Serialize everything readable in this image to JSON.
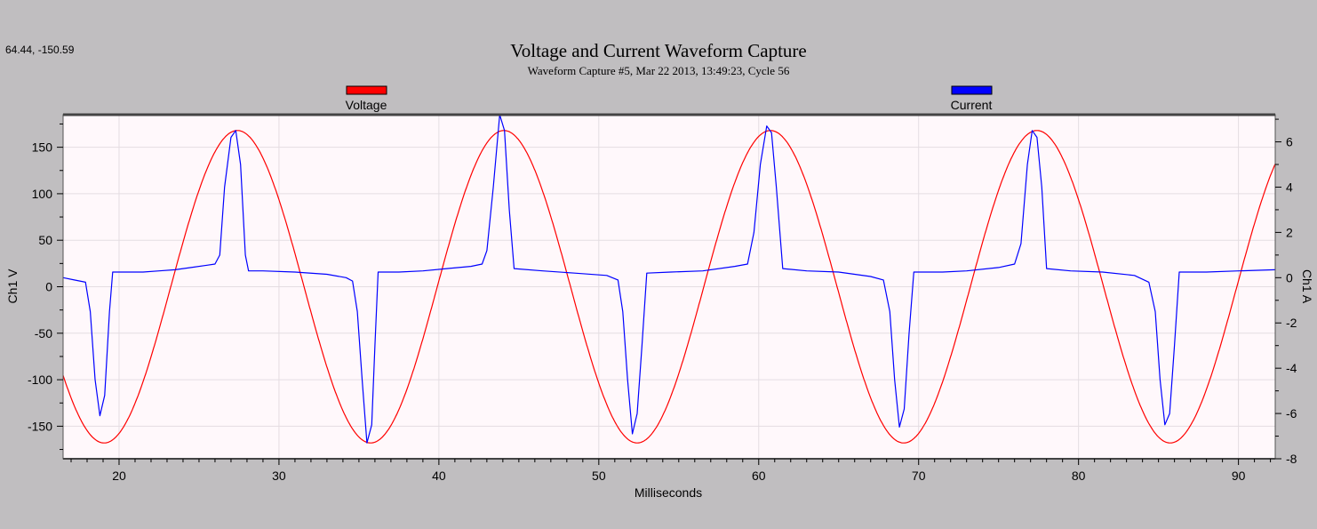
{
  "coord_readout": "64.44, -150.59",
  "chart_data": {
    "type": "line",
    "title": "Voltage and Current Waveform Capture",
    "subtitle": "Waveform Capture #5, Mar 22 2013, 13:49:23,  Cycle 56",
    "xlabel": "Milliseconds",
    "ylabel": "Ch1 V",
    "y2label": "Ch1 A",
    "xlim": [
      16.5,
      92.3
    ],
    "ylim": [
      -185,
      185
    ],
    "y2lim": [
      -8,
      7.2
    ],
    "x_ticks": [
      20,
      30,
      40,
      50,
      60,
      70,
      80,
      90
    ],
    "y_ticks": [
      -150,
      -100,
      -50,
      0,
      50,
      100,
      150
    ],
    "y2_ticks": [
      -8,
      -6,
      -4,
      -2,
      0,
      2,
      4,
      6
    ],
    "grid": true,
    "legend_position": "top",
    "series": [
      {
        "name": "Voltage",
        "color": "#ff0000",
        "axis": "left",
        "amplitude": 168,
        "frequency_hz": 60,
        "peak_times_ms": [
          27.4,
          44.0,
          60.7,
          77.3
        ]
      },
      {
        "name": "Current",
        "color": "#0000ff",
        "axis": "right",
        "points": [
          [
            16.5,
            0.0
          ],
          [
            17.2,
            -0.1
          ],
          [
            17.9,
            -0.2
          ],
          [
            18.2,
            -1.5
          ],
          [
            18.5,
            -4.5
          ],
          [
            18.8,
            -6.1
          ],
          [
            19.1,
            -5.2
          ],
          [
            19.4,
            -1.5
          ],
          [
            19.6,
            0.25
          ],
          [
            20.5,
            0.25
          ],
          [
            21.5,
            0.25
          ],
          [
            22.5,
            0.3
          ],
          [
            23.5,
            0.35
          ],
          [
            24.5,
            0.45
          ],
          [
            25.5,
            0.55
          ],
          [
            26.0,
            0.6
          ],
          [
            26.3,
            1.0
          ],
          [
            26.6,
            4.0
          ],
          [
            27.0,
            6.2
          ],
          [
            27.3,
            6.5
          ],
          [
            27.6,
            5.0
          ],
          [
            27.9,
            1.0
          ],
          [
            28.1,
            0.3
          ],
          [
            29.0,
            0.3
          ],
          [
            31.0,
            0.25
          ],
          [
            33.0,
            0.15
          ],
          [
            34.2,
            0.0
          ],
          [
            34.6,
            -0.15
          ],
          [
            34.9,
            -1.5
          ],
          [
            35.2,
            -4.5
          ],
          [
            35.5,
            -7.3
          ],
          [
            35.8,
            -6.5
          ],
          [
            36.0,
            -3.0
          ],
          [
            36.2,
            0.25
          ],
          [
            37.5,
            0.25
          ],
          [
            39.0,
            0.3
          ],
          [
            40.5,
            0.4
          ],
          [
            42.0,
            0.5
          ],
          [
            42.7,
            0.6
          ],
          [
            43.0,
            1.2
          ],
          [
            43.4,
            4.0
          ],
          [
            43.8,
            7.2
          ],
          [
            44.1,
            6.5
          ],
          [
            44.4,
            3.0
          ],
          [
            44.7,
            0.4
          ],
          [
            46.5,
            0.3
          ],
          [
            48.5,
            0.2
          ],
          [
            50.5,
            0.1
          ],
          [
            51.2,
            -0.1
          ],
          [
            51.5,
            -1.5
          ],
          [
            51.8,
            -4.5
          ],
          [
            52.1,
            -6.9
          ],
          [
            52.4,
            -6.0
          ],
          [
            52.7,
            -3.0
          ],
          [
            53.0,
            0.2
          ],
          [
            54.5,
            0.25
          ],
          [
            56.5,
            0.3
          ],
          [
            58.5,
            0.5
          ],
          [
            59.3,
            0.6
          ],
          [
            59.7,
            2.0
          ],
          [
            60.1,
            5.0
          ],
          [
            60.5,
            6.7
          ],
          [
            60.8,
            6.4
          ],
          [
            61.1,
            4.0
          ],
          [
            61.5,
            0.4
          ],
          [
            63.0,
            0.3
          ],
          [
            65.0,
            0.25
          ],
          [
            67.0,
            0.05
          ],
          [
            67.8,
            -0.1
          ],
          [
            68.2,
            -1.5
          ],
          [
            68.5,
            -4.5
          ],
          [
            68.8,
            -6.6
          ],
          [
            69.1,
            -5.8
          ],
          [
            69.4,
            -2.5
          ],
          [
            69.7,
            0.25
          ],
          [
            71.5,
            0.25
          ],
          [
            73.0,
            0.3
          ],
          [
            75.0,
            0.45
          ],
          [
            76.0,
            0.6
          ],
          [
            76.4,
            1.5
          ],
          [
            76.8,
            5.0
          ],
          [
            77.1,
            6.5
          ],
          [
            77.4,
            6.2
          ],
          [
            77.7,
            4.0
          ],
          [
            78.0,
            0.4
          ],
          [
            79.5,
            0.3
          ],
          [
            81.5,
            0.25
          ],
          [
            83.5,
            0.1
          ],
          [
            84.4,
            -0.2
          ],
          [
            84.8,
            -1.5
          ],
          [
            85.1,
            -4.5
          ],
          [
            85.4,
            -6.5
          ],
          [
            85.7,
            -6.0
          ],
          [
            86.0,
            -3.0
          ],
          [
            86.3,
            0.25
          ],
          [
            88.0,
            0.25
          ],
          [
            90.0,
            0.3
          ],
          [
            92.3,
            0.35
          ]
        ]
      }
    ]
  }
}
